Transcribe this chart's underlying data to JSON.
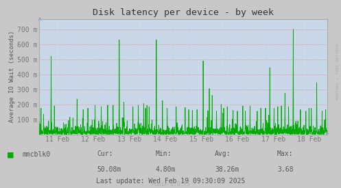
{
  "title": "Disk latency per device - by week",
  "ylabel": "Average IO Wait (seconds)",
  "background_color": "#c8c8c8",
  "plot_bg_color": "#c8d8e8",
  "grid_color_h": "#ff6666",
  "grid_color_v": "#ccccdd",
  "line_color": "#00aa00",
  "ylim_min": 0,
  "ylim_max": 0.77,
  "yticks": [
    0.0,
    0.1,
    0.2,
    0.3,
    0.4,
    0.5,
    0.6,
    0.7
  ],
  "ytick_labels": [
    "",
    "100 m",
    "200 m",
    "300 m",
    "400 m",
    "500 m",
    "600 m",
    "700 m"
  ],
  "x_day_labels": [
    "11 Feb",
    "12 Feb",
    "13 Feb",
    "14 Feb",
    "15 Feb",
    "16 Feb",
    "17 Feb",
    "18 Feb"
  ],
  "x_day_positions": [
    0.5,
    1.5,
    2.5,
    3.5,
    4.5,
    5.5,
    6.5,
    7.5
  ],
  "legend_label": "mmcblk0",
  "legend_color": "#00aa00",
  "cur_label": "Cur:",
  "cur_value": "50.08m",
  "min_label": "Min:",
  "min_value": "4.80m",
  "avg_label": "Avg:",
  "avg_value": "38.26m",
  "max_label": "Max:",
  "max_value": "3.68",
  "last_update": "Last update: Wed Feb 19 09:30:09 2025",
  "munin_version": "Munin 2.0.75",
  "rrdtool_label": "RRDTOOL / TOBI OETIKER",
  "title_color": "#333333",
  "text_color": "#555555",
  "label_color": "#777777",
  "axis_color": "#aaaaaa",
  "arrow_color": "#9999cc"
}
